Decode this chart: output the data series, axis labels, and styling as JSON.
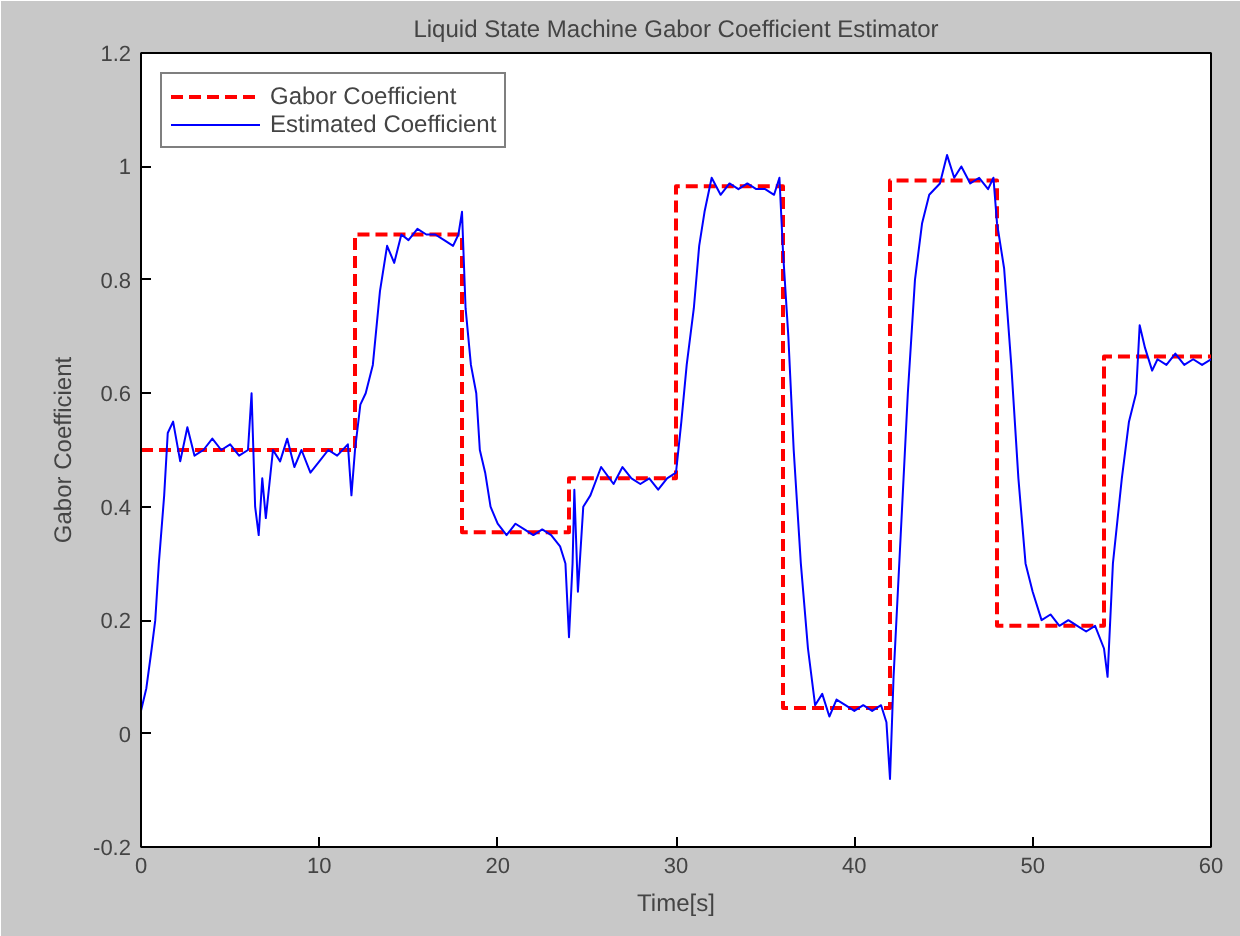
{
  "chart_data": {
    "type": "line",
    "title": "Liquid State Machine Gabor Coefficient Estimator",
    "xlabel": "Time[s]",
    "ylabel": "Gabor Coefficient",
    "xlim": [
      0,
      60
    ],
    "xticks": [
      0,
      10,
      20,
      30,
      40,
      50,
      60
    ],
    "ylim": [
      -0.2,
      1.2
    ],
    "yticks": [
      -0.2,
      0,
      0.2,
      0.4,
      0.6,
      0.8,
      1,
      1.2
    ],
    "grid": false,
    "legend": "top left",
    "series": [
      {
        "name": "Gabor Coefficient",
        "type": "step",
        "line_style": "dashed",
        "color": "#ff0000",
        "x": [
          0,
          12,
          18,
          24,
          30,
          36,
          42,
          48,
          54,
          60
        ],
        "values": [
          0.5,
          0.88,
          0.355,
          0.45,
          0.965,
          0.045,
          0.975,
          0.19,
          0.665,
          0.665
        ]
      },
      {
        "name": "Estimated Coefficient",
        "line_style": "solid",
        "color": "#0000ff",
        "x": [
          0,
          0.3,
          0.6,
          0.8,
          1.0,
          1.3,
          1.5,
          1.8,
          2.2,
          2.6,
          3,
          3.5,
          4,
          4.5,
          5,
          5.5,
          6,
          6.2,
          6.4,
          6.6,
          6.8,
          7,
          7.4,
          7.8,
          8.2,
          8.6,
          9,
          9.5,
          10,
          10.5,
          11,
          11.6,
          11.8,
          12,
          12.3,
          12.6,
          13,
          13.4,
          13.8,
          14.2,
          14.6,
          15,
          15.5,
          16,
          16.5,
          17,
          17.5,
          17.8,
          18,
          18.2,
          18.5,
          18.8,
          19,
          19.3,
          19.6,
          20,
          20.5,
          21,
          21.5,
          22,
          22.5,
          23,
          23.5,
          23.8,
          24,
          24.2,
          24.3,
          24.5,
          24.8,
          25.2,
          25.8,
          26.5,
          27,
          27.5,
          28,
          28.5,
          29,
          29.5,
          30,
          30.3,
          30.6,
          31,
          31.3,
          31.6,
          32,
          32.5,
          33,
          33.5,
          34,
          34.5,
          35,
          35.5,
          35.8,
          36,
          36.3,
          36.6,
          37,
          37.4,
          37.8,
          38.2,
          38.6,
          39,
          39.5,
          40,
          40.5,
          41,
          41.5,
          41.8,
          42,
          42.2,
          42.6,
          43,
          43.4,
          43.8,
          44.2,
          44.8,
          45.2,
          45.6,
          46,
          46.5,
          47,
          47.5,
          47.8,
          48,
          48.4,
          48.8,
          49.2,
          49.6,
          50,
          50.5,
          51,
          51.5,
          52,
          52.5,
          53,
          53.5,
          54,
          54.2,
          54.5,
          55,
          55.4,
          55.8,
          56,
          56.3,
          56.7,
          57,
          57.5,
          58,
          58.5,
          59,
          59.5,
          60
        ],
        "values": [
          0.04,
          0.08,
          0.15,
          0.2,
          0.3,
          0.42,
          0.53,
          0.55,
          0.48,
          0.54,
          0.49,
          0.5,
          0.52,
          0.5,
          0.51,
          0.49,
          0.5,
          0.6,
          0.4,
          0.35,
          0.45,
          0.38,
          0.5,
          0.48,
          0.52,
          0.47,
          0.5,
          0.46,
          0.48,
          0.5,
          0.49,
          0.51,
          0.42,
          0.5,
          0.58,
          0.6,
          0.65,
          0.78,
          0.86,
          0.83,
          0.88,
          0.87,
          0.89,
          0.88,
          0.88,
          0.87,
          0.86,
          0.88,
          0.92,
          0.75,
          0.65,
          0.6,
          0.5,
          0.46,
          0.4,
          0.37,
          0.35,
          0.37,
          0.36,
          0.35,
          0.36,
          0.35,
          0.33,
          0.3,
          0.17,
          0.3,
          0.43,
          0.25,
          0.4,
          0.42,
          0.47,
          0.44,
          0.47,
          0.45,
          0.44,
          0.45,
          0.43,
          0.45,
          0.46,
          0.55,
          0.65,
          0.75,
          0.86,
          0.92,
          0.98,
          0.95,
          0.97,
          0.96,
          0.97,
          0.96,
          0.96,
          0.95,
          0.98,
          0.85,
          0.7,
          0.5,
          0.3,
          0.15,
          0.05,
          0.07,
          0.03,
          0.06,
          0.05,
          0.04,
          0.05,
          0.04,
          0.05,
          0.02,
          -0.08,
          0.1,
          0.35,
          0.6,
          0.8,
          0.9,
          0.95,
          0.97,
          1.02,
          0.98,
          1.0,
          0.97,
          0.98,
          0.96,
          0.98,
          0.9,
          0.82,
          0.65,
          0.45,
          0.3,
          0.25,
          0.2,
          0.21,
          0.19,
          0.2,
          0.19,
          0.18,
          0.19,
          0.15,
          0.1,
          0.3,
          0.45,
          0.55,
          0.6,
          0.72,
          0.68,
          0.64,
          0.66,
          0.65,
          0.67,
          0.65,
          0.66,
          0.65,
          0.66
        ]
      }
    ]
  }
}
